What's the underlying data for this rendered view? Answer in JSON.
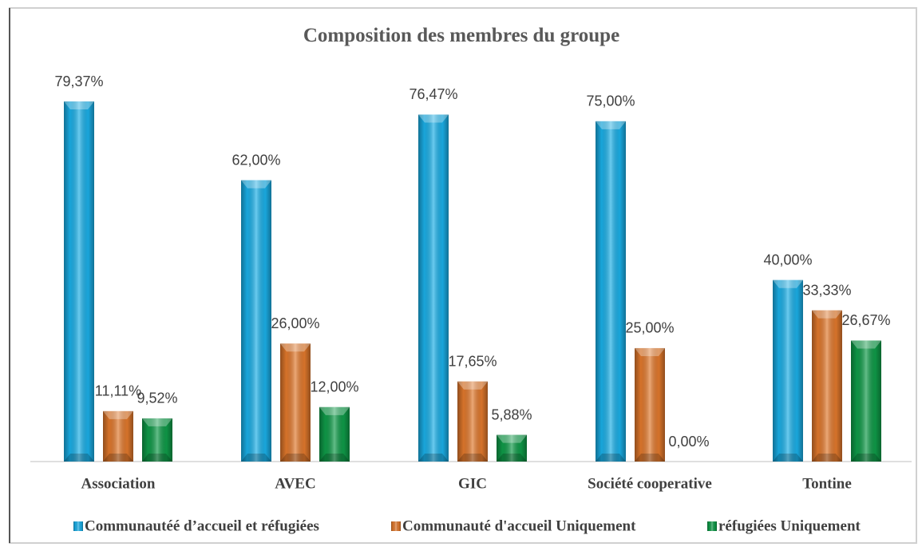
{
  "chart_data": {
    "type": "bar",
    "title": "Composition des membres du groupe",
    "categories": [
      "Association",
      "AVEC",
      "GIC",
      "Société cooperative",
      "Tontine"
    ],
    "series": [
      {
        "name": "Communautéé d’accueil et réfugiées",
        "color": "#1aaee6",
        "values": [
          79.37,
          62,
          76.47,
          75,
          40
        ],
        "value_labels": [
          "79,37%",
          "62,00%",
          "76,47%",
          "75,00%",
          "40,00%"
        ]
      },
      {
        "name": "Communauté d'accueil Uniquement",
        "color": "#e0782c",
        "values": [
          11.11,
          26,
          17.65,
          25,
          33.33
        ],
        "value_labels": [
          "11,11%",
          "26,00%",
          "17,65%",
          "25,00%",
          "33,33%"
        ]
      },
      {
        "name": "réfugiées Uniquement",
        "color": "#0f9a48",
        "values": [
          9.52,
          12,
          5.88,
          0,
          26.67
        ],
        "value_labels": [
          "9,52%",
          "12,00%",
          "5,88%",
          "0,00%",
          "26,67%"
        ]
      }
    ],
    "legend": "bottom"
  }
}
